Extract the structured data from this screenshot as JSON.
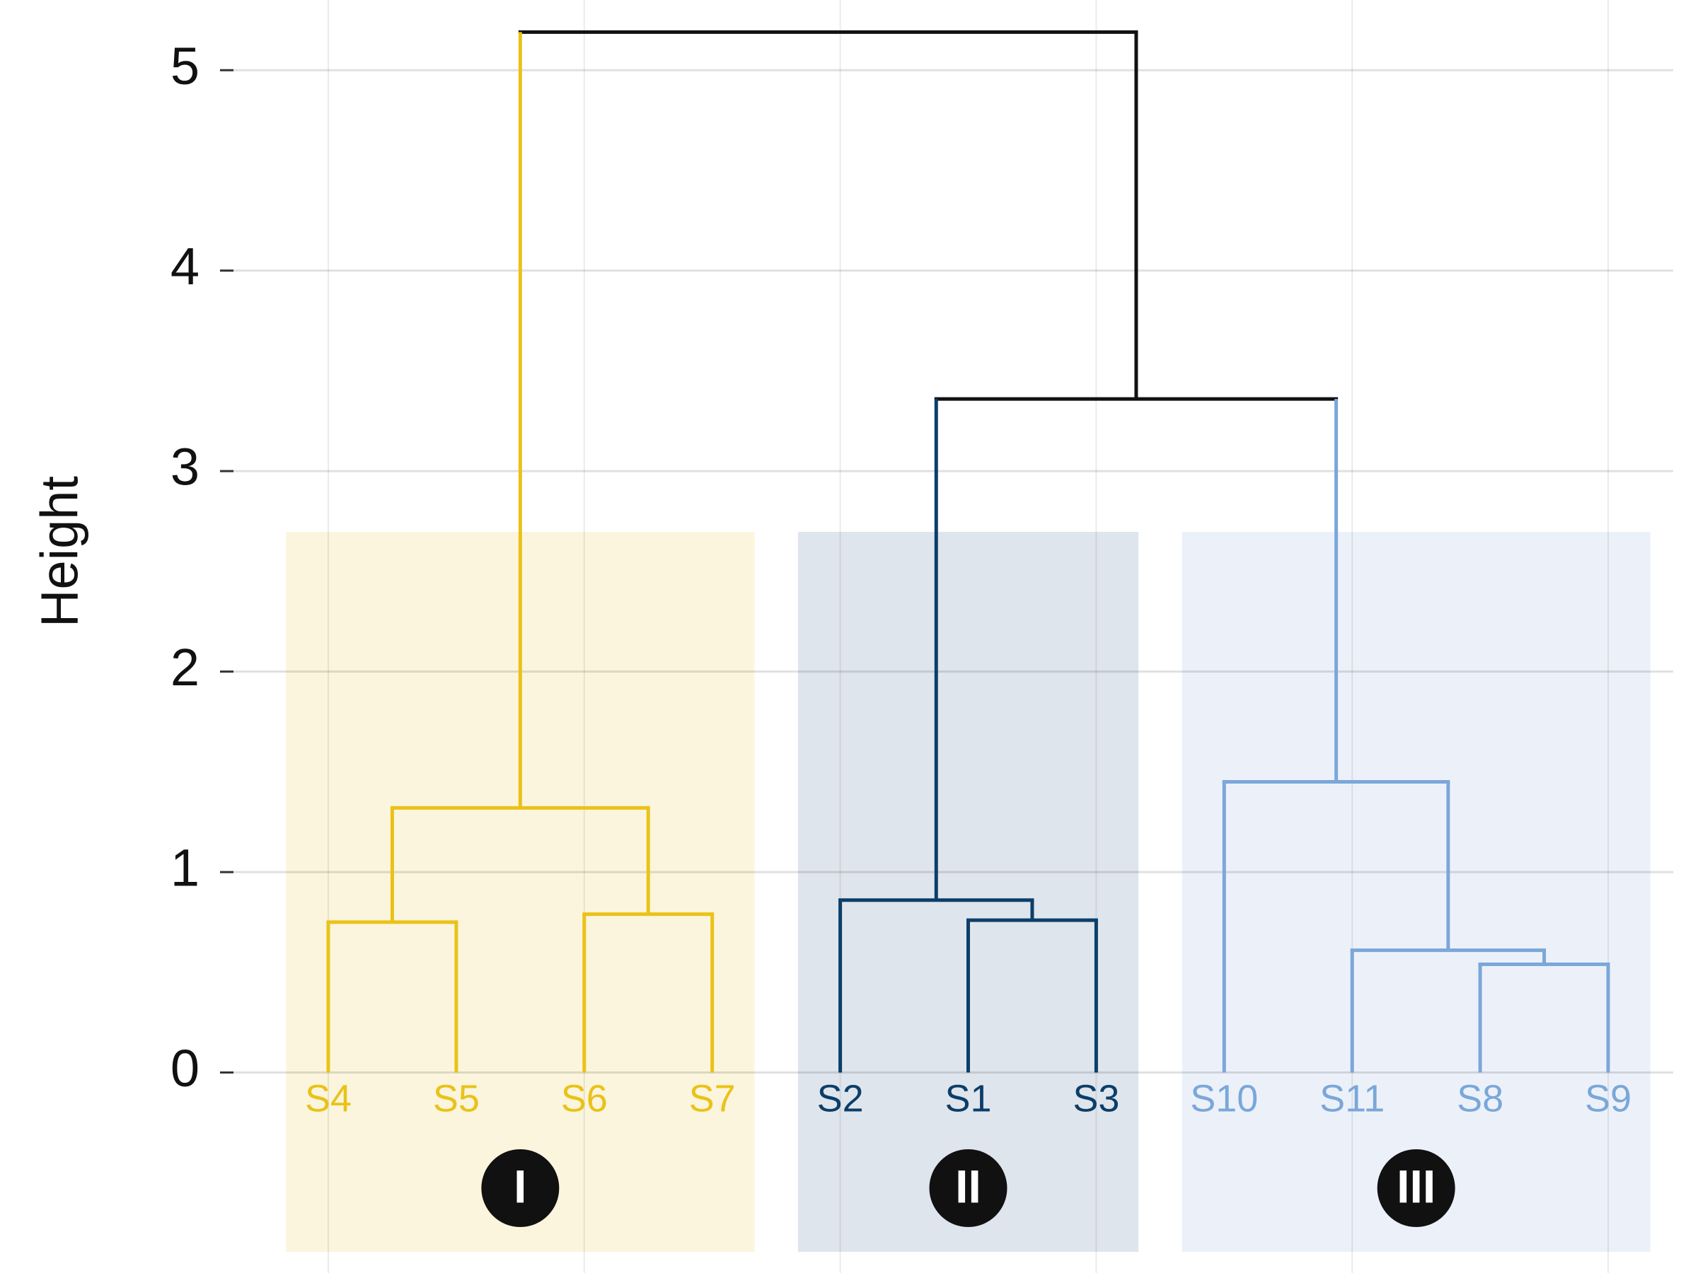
{
  "chart_data": {
    "type": "dendrogram",
    "y_label": "Height",
    "categories": [
      "S4",
      "S5",
      "S6",
      "S7",
      "S2",
      "S1",
      "S3",
      "S10",
      "S11",
      "S8",
      "S9"
    ],
    "merges": [
      {
        "children": [
          0,
          1
        ],
        "height": 0.75,
        "color": "#eac218"
      },
      {
        "children": [
          2,
          3
        ],
        "height": 0.79,
        "color": "#eac218"
      },
      {
        "children": [
          11,
          12
        ],
        "height": 1.32,
        "color": "#eac218"
      },
      {
        "children": [
          5,
          6
        ],
        "height": 0.76,
        "color": "#0c3e69"
      },
      {
        "children": [
          4,
          14
        ],
        "height": 0.86,
        "color": "#0c3e69"
      },
      {
        "children": [
          9,
          10
        ],
        "height": 0.54,
        "color": "#7ba7d9"
      },
      {
        "children": [
          8,
          16
        ],
        "height": 0.61,
        "color": "#7ba7d9"
      },
      {
        "children": [
          7,
          17
        ],
        "height": 1.45,
        "color": "#7ba7d9"
      },
      {
        "children": [
          15,
          18
        ],
        "height": 3.36,
        "color": "#111111"
      },
      {
        "children": [
          13,
          19
        ],
        "height": 5.19,
        "color": "#111111"
      }
    ],
    "clusters": [
      {
        "label": "I",
        "leaves": [
          0,
          3
        ],
        "color": "#eac218",
        "fill": "#fbf5dd"
      },
      {
        "label": "II",
        "leaves": [
          4,
          6
        ],
        "color": "#0c3e69",
        "fill": "#dfe5ec"
      },
      {
        "label": "III",
        "leaves": [
          7,
          10
        ],
        "color": "#7ba7d9",
        "fill": "#ecf1f9"
      }
    ],
    "ylim": [
      -1,
      5.35
    ],
    "yticks": [
      0,
      1,
      2,
      3,
      4,
      5
    ],
    "grid": true
  }
}
